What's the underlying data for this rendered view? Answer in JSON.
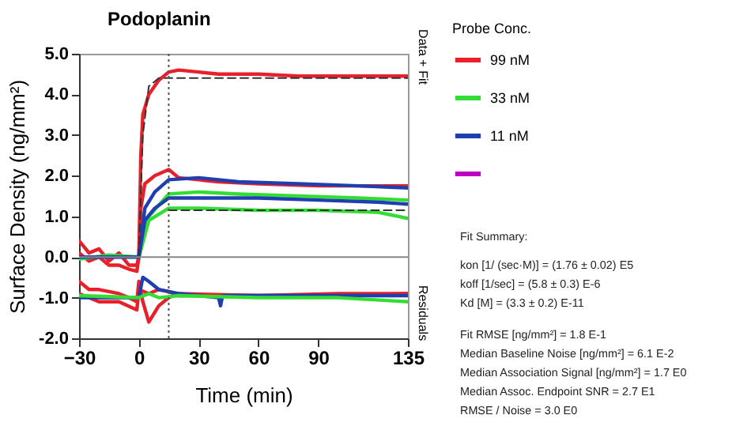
{
  "chart_data": {
    "type": "line",
    "title": "Podoplanin",
    "xlabel": "Time (min)",
    "ylabel": "Surface Density (ng/mm²)",
    "legend_title": "Probe Conc.",
    "legend": "right",
    "grid": false,
    "marker": "none",
    "xlim": [
      -30,
      135
    ],
    "xticks": [
      -30,
      0,
      30,
      60,
      90,
      135
    ],
    "ylim": [
      -2,
      5
    ],
    "yticks": [
      {
        "value": -2,
        "label": "-2.0"
      },
      {
        "value": -1,
        "label": "-1.0"
      },
      {
        "value": 0,
        "label": "0.0"
      },
      {
        "value": 1,
        "label": "1.0"
      },
      {
        "value": 2,
        "label": "2.0"
      },
      {
        "value": 3,
        "label": "3.0"
      },
      {
        "value": 4,
        "label": "4.0"
      },
      {
        "value": 5,
        "label": "5.0"
      }
    ],
    "series": [
      {
        "name": "99 nM",
        "color": "#e8202a",
        "x": [
          -30,
          -25,
          -20,
          -15,
          -10,
          -5,
          -1,
          0,
          1,
          2,
          5,
          10,
          15,
          20,
          30,
          40,
          60,
          80,
          100,
          120,
          135
        ],
        "values": [
          0.4,
          0.1,
          0.2,
          -0.1,
          0.1,
          -0.2,
          -0.2,
          0,
          2.5,
          3.5,
          4.0,
          4.35,
          4.55,
          4.6,
          4.55,
          4.5,
          4.5,
          4.45,
          4.45,
          4.45,
          4.45
        ]
      },
      {
        "color": "#e8202a",
        "x": [
          -30,
          -25,
          -20,
          -15,
          -10,
          -5,
          -1,
          0,
          1,
          3,
          8,
          15,
          20,
          40,
          60,
          90,
          120,
          135
        ],
        "values": [
          0.1,
          -0.1,
          0,
          -0.2,
          -0.2,
          -0.3,
          -0.35,
          0,
          1.2,
          1.8,
          2.0,
          2.15,
          1.95,
          1.85,
          1.8,
          1.75,
          1.75,
          1.75
        ]
      },
      {
        "name": "33 nM",
        "color": "#33dd33",
        "x": [
          -30,
          -15,
          0,
          5,
          15,
          30,
          50,
          80,
          110,
          135
        ],
        "values": [
          0,
          0,
          0,
          1.0,
          1.55,
          1.6,
          1.55,
          1.5,
          1.45,
          1.4
        ]
      },
      {
        "color": "#33dd33",
        "x": [
          -30,
          -15,
          0,
          5,
          15,
          30,
          60,
          90,
          120,
          135
        ],
        "values": [
          -0.05,
          0.05,
          0,
          0.9,
          1.2,
          1.2,
          1.15,
          1.15,
          1.1,
          0.95
        ]
      },
      {
        "name": "11 nM",
        "color": "#1f3fb0",
        "x": [
          -30,
          -15,
          0,
          3,
          8,
          15,
          30,
          50,
          80,
          110,
          135
        ],
        "values": [
          0,
          0,
          0,
          1.2,
          1.6,
          1.9,
          1.95,
          1.85,
          1.8,
          1.75,
          1.7
        ]
      },
      {
        "color": "#1f3fb0",
        "x": [
          -30,
          -15,
          0,
          3,
          8,
          15,
          30,
          60,
          90,
          120,
          135
        ],
        "values": [
          0,
          0,
          0,
          0.9,
          1.2,
          1.45,
          1.45,
          1.45,
          1.4,
          1.35,
          1.3
        ]
      },
      {
        "color": "#c000c0"
      },
      {
        "color": "#e8202a",
        "x": [
          -30,
          -25,
          -20,
          -10,
          -5,
          -1,
          0,
          2,
          5,
          10,
          15,
          20,
          60,
          100,
          135
        ],
        "values": [
          -0.6,
          -0.8,
          -0.8,
          -0.9,
          -1.0,
          -1.1,
          -0.6,
          -1.1,
          -1.6,
          -1.2,
          -1.0,
          -0.9,
          -0.95,
          -0.9,
          -0.9
        ]
      },
      {
        "color": "#e8202a",
        "x": [
          -30,
          -20,
          -10,
          -1,
          0,
          5,
          10,
          15,
          20,
          60,
          100,
          135
        ],
        "values": [
          -0.9,
          -1.1,
          -1.1,
          -1.3,
          -0.8,
          -0.9,
          -0.8,
          -0.85,
          -0.95,
          -0.95,
          -0.95,
          -0.9
        ]
      },
      {
        "color": "#1f3fb0",
        "x": [
          -30,
          0,
          2,
          5,
          10,
          20,
          40,
          41,
          42,
          80,
          135
        ],
        "values": [
          -1.0,
          -1.0,
          -0.5,
          -0.6,
          -0.8,
          -0.9,
          -1.0,
          -1.2,
          -0.95,
          -0.95,
          -0.95
        ]
      },
      {
        "color": "#33dd33",
        "x": [
          -30,
          0,
          5,
          10,
          20,
          60,
          100,
          135
        ],
        "values": [
          -0.95,
          -1.0,
          -0.9,
          -1.0,
          -0.95,
          -1.0,
          -1.0,
          -1.1
        ]
      },
      {
        "color": "#333333",
        "line_style": "dashed",
        "x": [
          0,
          2,
          5,
          10,
          15,
          135
        ],
        "values": [
          0,
          3.0,
          4.2,
          4.4,
          4.4,
          4.4
        ]
      },
      {
        "color": "#333333",
        "line_style": "dashed",
        "x": [
          15,
          135
        ],
        "values": [
          1.15,
          1.15
        ]
      }
    ],
    "ref_lines": [
      {
        "axis": "x",
        "value": 15,
        "color": "#555555",
        "line_style": "dotted"
      },
      {
        "axis": "y",
        "value": 0,
        "color": "#888888",
        "line_style": "solid"
      }
    ],
    "annotations": [
      "Data + Fit",
      "Residuals",
      "Fit Summary:",
      "kon  [1/ (sec·M)]  =   (1.76 ± 0.02) E5",
      "koff  [1/sec]  =   (5.8 ± 0.3) E-6",
      "Kd  [M]  =   (3.3 ± 0.2) E-11",
      "Fit RMSE [ng/mm²]  =   1.8 E-1",
      "Median Baseline Noise [ng/mm²]  =   6.1 E-2",
      "Median Association Signal [ng/mm²]  =   1.7 E0",
      "Median Assoc. Endpoint SNR  =   2.7 E1",
      "RMSE / Noise  =   3.0 E0"
    ]
  }
}
